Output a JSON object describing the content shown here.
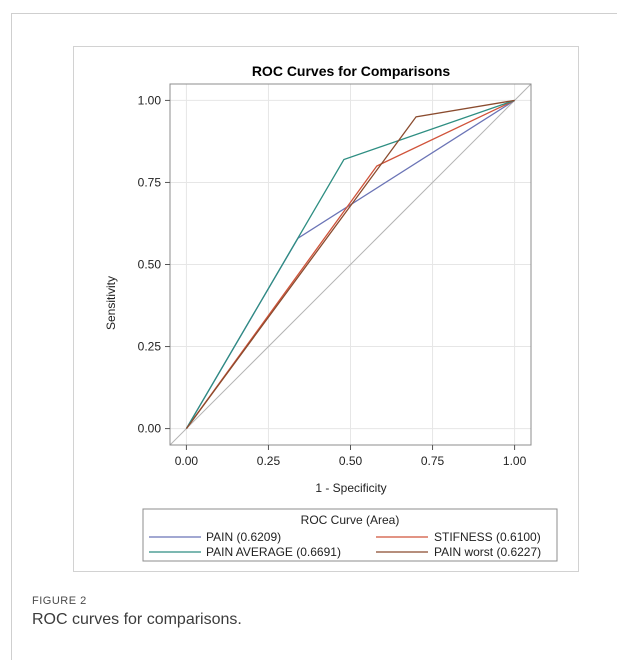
{
  "figure": {
    "label": "FIGURE 2",
    "caption": "ROC curves for comparisons."
  },
  "chart_data": {
    "type": "line",
    "title": "ROC Curves for Comparisons",
    "xlabel": "1 - Specificity",
    "ylabel": "Sensitivity",
    "xlim": [
      -0.05,
      1.05
    ],
    "ylim": [
      -0.05,
      1.05
    ],
    "xticks": [
      "0.00",
      "0.25",
      "0.50",
      "0.75",
      "1.00"
    ],
    "yticks": [
      "0.00",
      "0.25",
      "0.50",
      "0.75",
      "1.00"
    ],
    "grid": true,
    "legend_title": "ROC Curve (Area)",
    "legend_position": "bottom",
    "reference_line": {
      "x": [
        -0.05,
        1.05
      ],
      "y": [
        -0.05,
        1.05
      ],
      "color": "#b4b4b4"
    },
    "series": [
      {
        "name": "PAIN",
        "area": "(0.6209)",
        "color": "#6b74b6",
        "x": [
          0,
          0.34,
          1
        ],
        "y": [
          0,
          0.58,
          1
        ]
      },
      {
        "name": "STIFNESS",
        "area": "(0.6100)",
        "color": "#d0533a",
        "x": [
          0,
          0.58,
          1
        ],
        "y": [
          0,
          0.8,
          1
        ]
      },
      {
        "name": "PAIN AVERAGE",
        "area": "(0.6691)",
        "color": "#2e8e82",
        "x": [
          0,
          0.48,
          1
        ],
        "y": [
          0,
          0.82,
          1
        ]
      },
      {
        "name": "PAIN worst",
        "area": "(0.6227)",
        "color": "#8a4b2e",
        "x": [
          0,
          0.7,
          1
        ],
        "y": [
          0,
          0.95,
          1
        ]
      }
    ]
  }
}
